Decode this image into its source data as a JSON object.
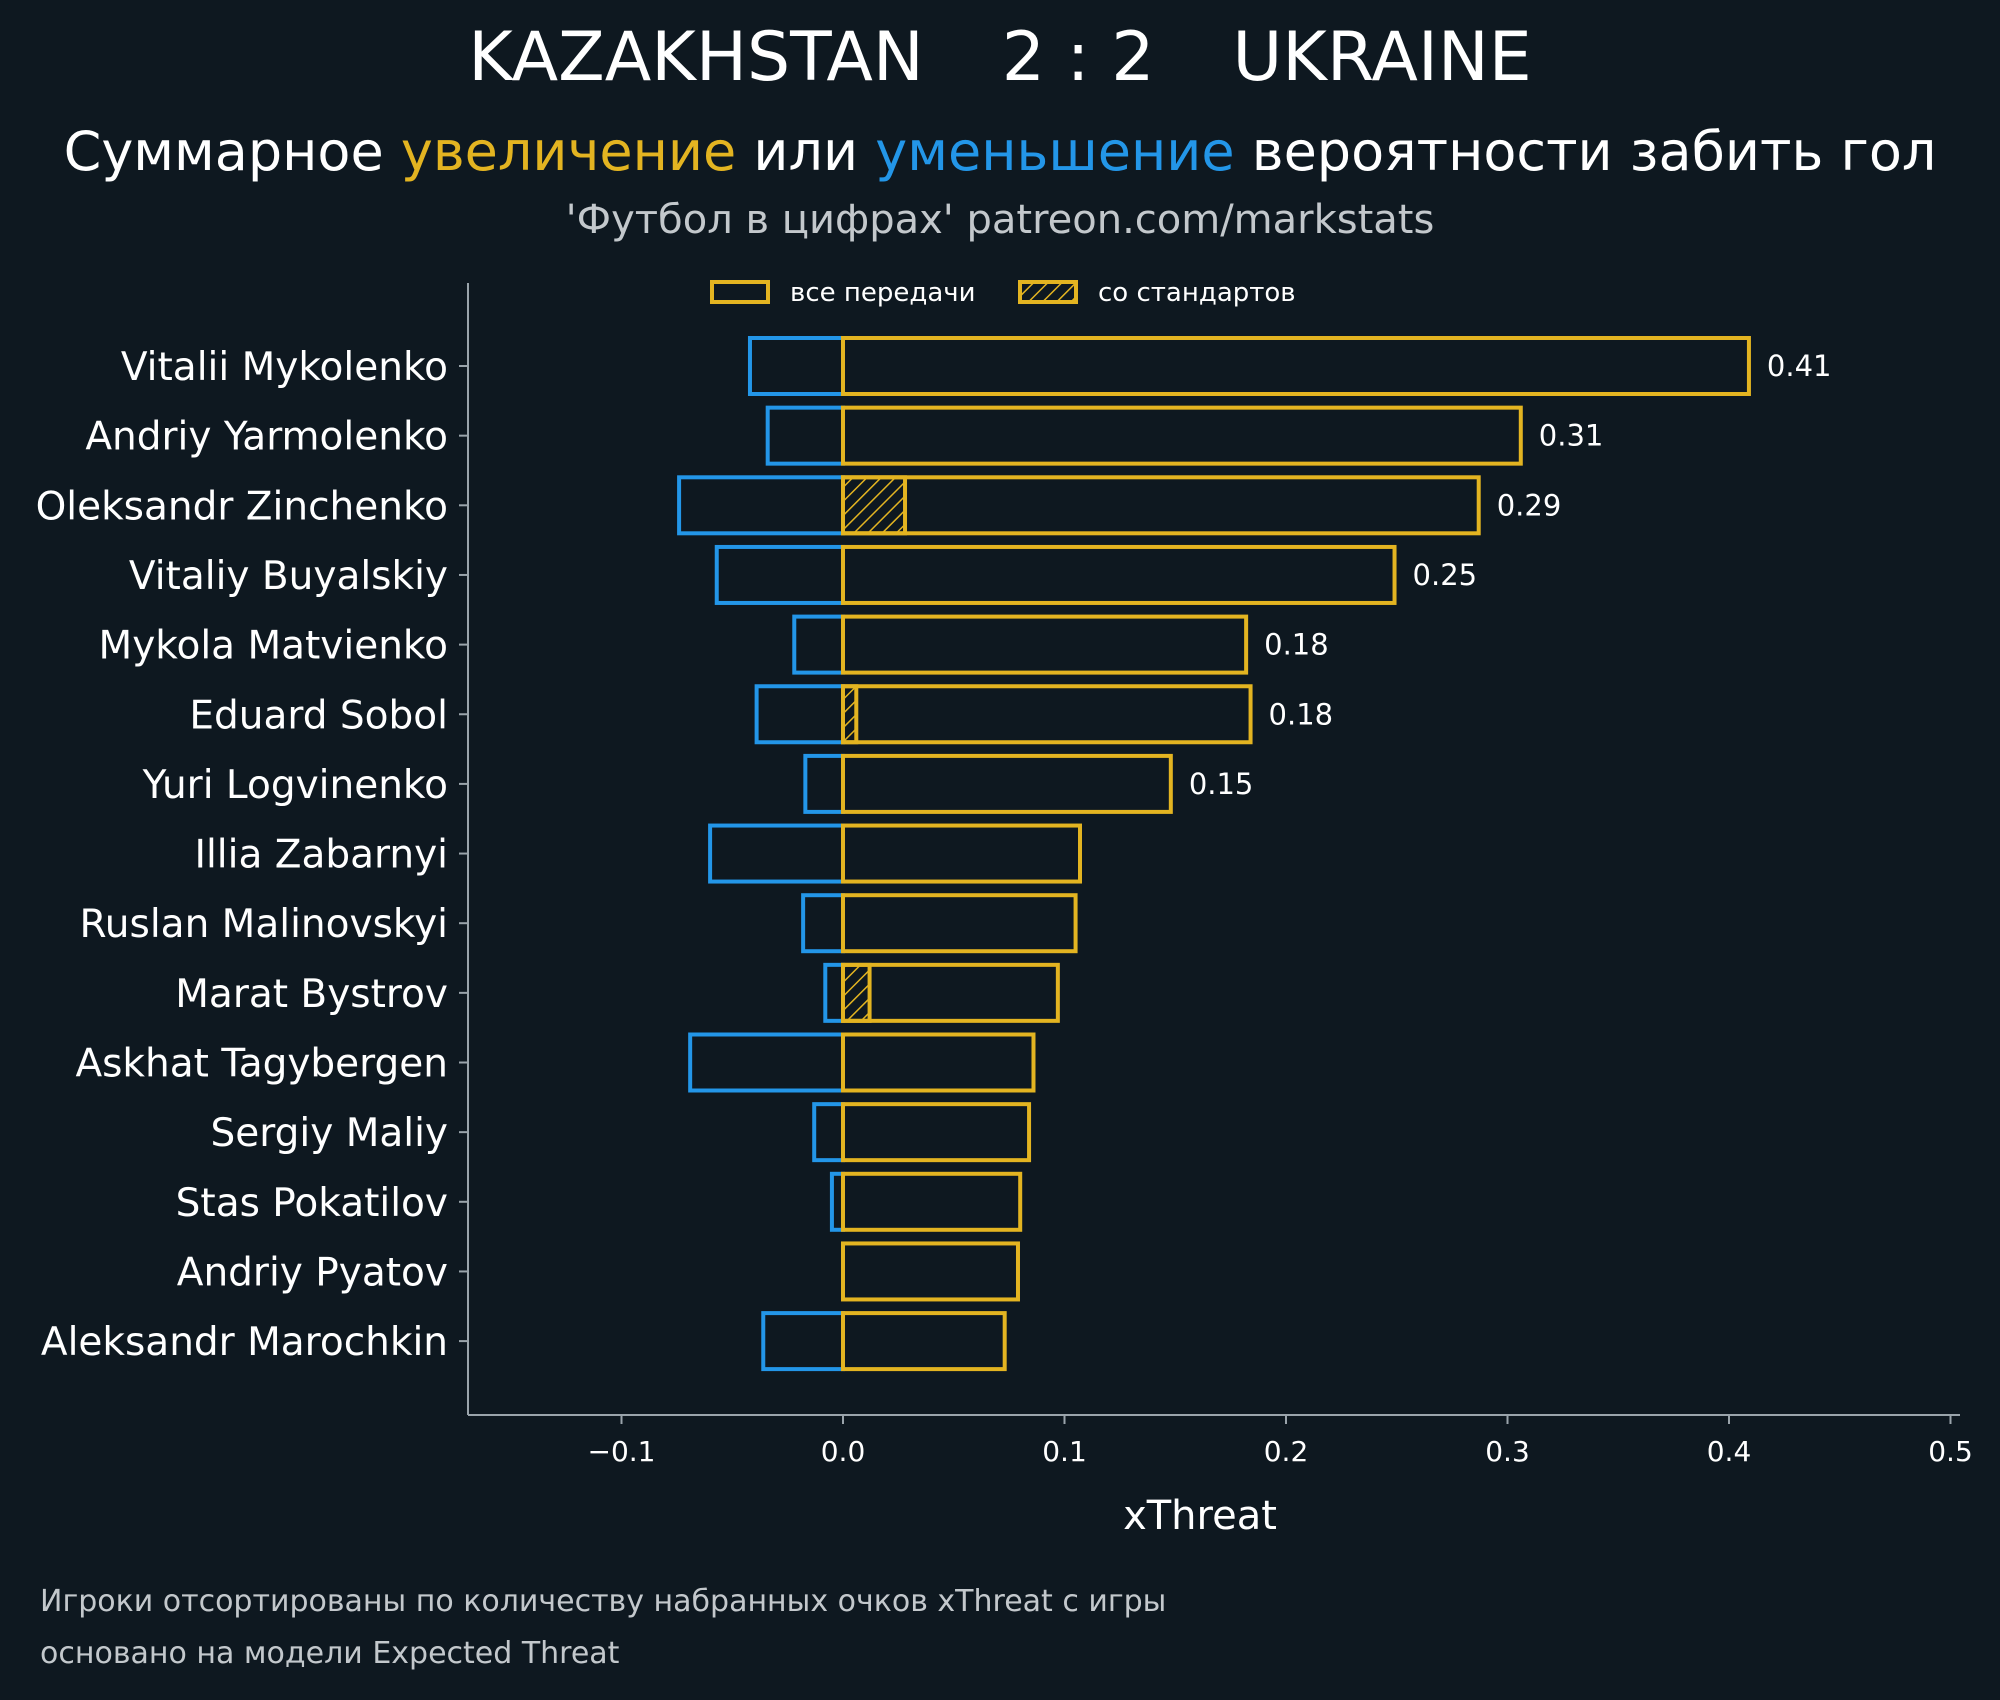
{
  "header": {
    "home_team": "KAZAKHSTAN",
    "score": "2 : 2",
    "away_team": "UKRAINE",
    "subtitle_part1": "Суммарное ",
    "subtitle_increase": "увеличение",
    "subtitle_part2": " или ",
    "subtitle_decrease": "уменьшение",
    "subtitle_part3": " вероятности забить гол",
    "source": "'Футбол в цифрах' patreon.com/markstats"
  },
  "colors": {
    "background": "#0e1820",
    "increase": "#e3b421",
    "decrease": "#2396e8",
    "axis": "#9aa4ab"
  },
  "chart_data": {
    "type": "bar",
    "orientation": "horizontal",
    "xlabel": "xThreat",
    "xlim": [
      -0.17,
      0.5
    ],
    "xticks": [
      -0.1,
      0.0,
      0.1,
      0.2,
      0.3,
      0.4,
      0.5
    ],
    "xtick_labels": [
      "−0.1",
      "0.0",
      "0.1",
      "0.2",
      "0.3",
      "0.4",
      "0.5"
    ],
    "legend": [
      {
        "label": "все передачи",
        "style": "outline"
      },
      {
        "label": "со стандартов",
        "style": "hatched"
      }
    ],
    "legend_position": "top-center",
    "players": [
      "Vitalii Mykolenko",
      "Andriy Yarmolenko",
      "Oleksandr Zinchenko",
      "Vitaliy Buyalskiy",
      "Mykola Matvienko",
      "Eduard Sobol",
      "Yuri Logvinenko",
      "Illia Zabarnyi",
      "Ruslan Malinovskyi",
      "Marat Bystrov",
      "Askhat Tagybergen",
      "Sergiy Maliy",
      "Stas Pokatilov",
      "Andriy Pyatov",
      "Aleksandr Marochkin"
    ],
    "series": [
      {
        "name": "увеличение",
        "values": [
          0.409,
          0.306,
          0.287,
          0.249,
          0.182,
          0.184,
          0.148,
          0.107,
          0.105,
          0.097,
          0.086,
          0.084,
          0.08,
          0.079,
          0.073
        ]
      },
      {
        "name": "уменьшение",
        "values": [
          -0.042,
          -0.034,
          -0.074,
          -0.057,
          -0.022,
          -0.039,
          -0.017,
          -0.06,
          -0.018,
          -0.008,
          -0.069,
          -0.013,
          -0.005,
          0.0,
          -0.036
        ]
      },
      {
        "name": "со стандартов",
        "values": [
          0.0,
          0.0,
          0.028,
          0.0,
          0.0,
          0.006,
          0.0,
          0.0,
          0.0,
          0.012,
          0.0,
          0.0,
          0.0,
          0.0,
          0.0
        ]
      }
    ],
    "data_labels": [
      "0.41",
      "0.31",
      "0.29",
      "0.25",
      "0.18",
      "0.18",
      "0.15",
      "",
      "",
      "",
      "",
      "",
      "",
      "",
      ""
    ]
  },
  "footer": {
    "line1": "Игроки отсортированы по количеству набранных очков xThreat с игры",
    "line2": "основано на модели Expected Threat"
  }
}
